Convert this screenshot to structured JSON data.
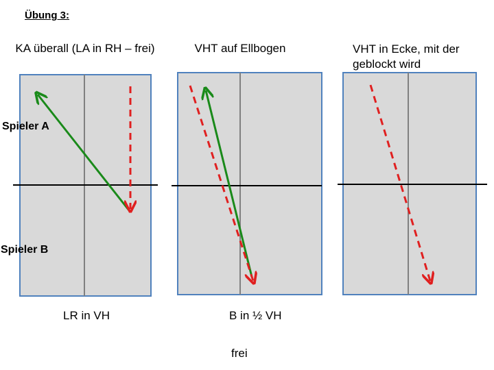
{
  "heading": "Übung 3:",
  "panels": [
    {
      "title": "KA überall (LA in RH – frei)"
    },
    {
      "title": "VHT auf Ellbogen"
    },
    {
      "title": "VHT in Ecke, mit der geblockt wird"
    }
  ],
  "side_labels": {
    "top": "Spieler A",
    "bottom": "Spieler B"
  },
  "captions": {
    "panel1": "LR in VH",
    "panel2": "B in ½ VH",
    "extra": "frei"
  },
  "colors": {
    "court_fill": "#d9d9d9",
    "court_border": "#4f81bd",
    "center_line": "#808080",
    "net": "#000000",
    "solid_arrow": "#1a8a1a",
    "dashed_arrow": "#e02020"
  }
}
